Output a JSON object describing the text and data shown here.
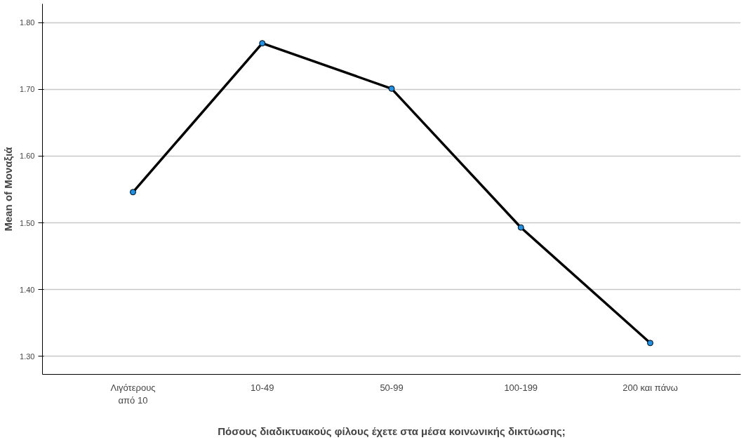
{
  "chart_data": {
    "type": "line",
    "xlabel": "Πόσους διαδικτυακούς φίλους έχετε στα μέσα κοινωνικής δικτύωσης;",
    "ylabel": "Mean of Μοναξιά",
    "categories": [
      "Λιγότερους από 10",
      "10-49",
      "50-99",
      "100-199",
      "200 και πάνω"
    ],
    "series": [
      {
        "color": "#000000",
        "values": [
          1.546,
          1.769,
          1.701,
          1.493,
          1.32
        ]
      }
    ],
    "ylim": [
      1.273,
      1.828
    ],
    "yticks": [
      {
        "value": 1.3,
        "label": "1.30"
      },
      {
        "value": 1.4,
        "label": "1.40"
      },
      {
        "value": 1.5,
        "label": "1.50"
      },
      {
        "value": 1.6,
        "label": "1.60"
      },
      {
        "value": 1.7,
        "label": "1.70"
      },
      {
        "value": 1.8,
        "label": "1.80"
      }
    ],
    "grid": "y",
    "marker": "circle"
  }
}
